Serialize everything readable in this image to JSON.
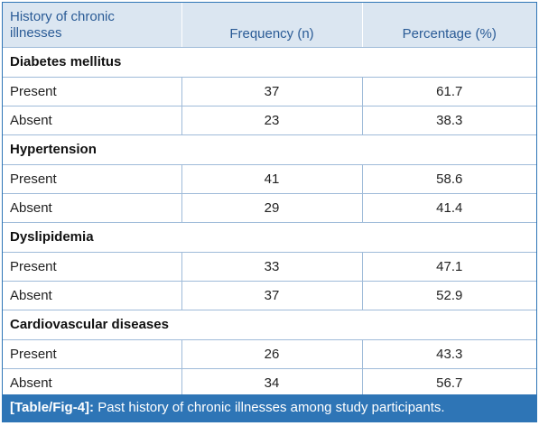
{
  "headers": {
    "col1_line1": "History of chronic",
    "col1_line2": "illnesses",
    "col2": "Frequency (n)",
    "col3": "Percentage (%)"
  },
  "groups": [
    {
      "title": "Diabetes mellitus",
      "rows": [
        {
          "label": "Present",
          "frequency": "37",
          "percentage": "61.7"
        },
        {
          "label": "Absent",
          "frequency": "23",
          "percentage": "38.3"
        }
      ]
    },
    {
      "title": "Hypertension",
      "rows": [
        {
          "label": "Present",
          "frequency": "41",
          "percentage": "58.6"
        },
        {
          "label": "Absent",
          "frequency": "29",
          "percentage": "41.4"
        }
      ]
    },
    {
      "title": "Dyslipidemia",
      "rows": [
        {
          "label": "Present",
          "frequency": "33",
          "percentage": "47.1"
        },
        {
          "label": "Absent",
          "frequency": "37",
          "percentage": "52.9"
        }
      ]
    },
    {
      "title": "Cardiovascular diseases",
      "rows": [
        {
          "label": "Present",
          "frequency": "26",
          "percentage": "43.3"
        },
        {
          "label": "Absent",
          "frequency": "34",
          "percentage": "56.7"
        }
      ]
    }
  ],
  "caption": {
    "label": "[Table/Fig-4]:",
    "text": " Past history of chronic illnesses among study participants."
  },
  "colors": {
    "accent": "#2e75b6",
    "header_bg": "#dbe6f1",
    "header_text": "#2a5b96"
  }
}
